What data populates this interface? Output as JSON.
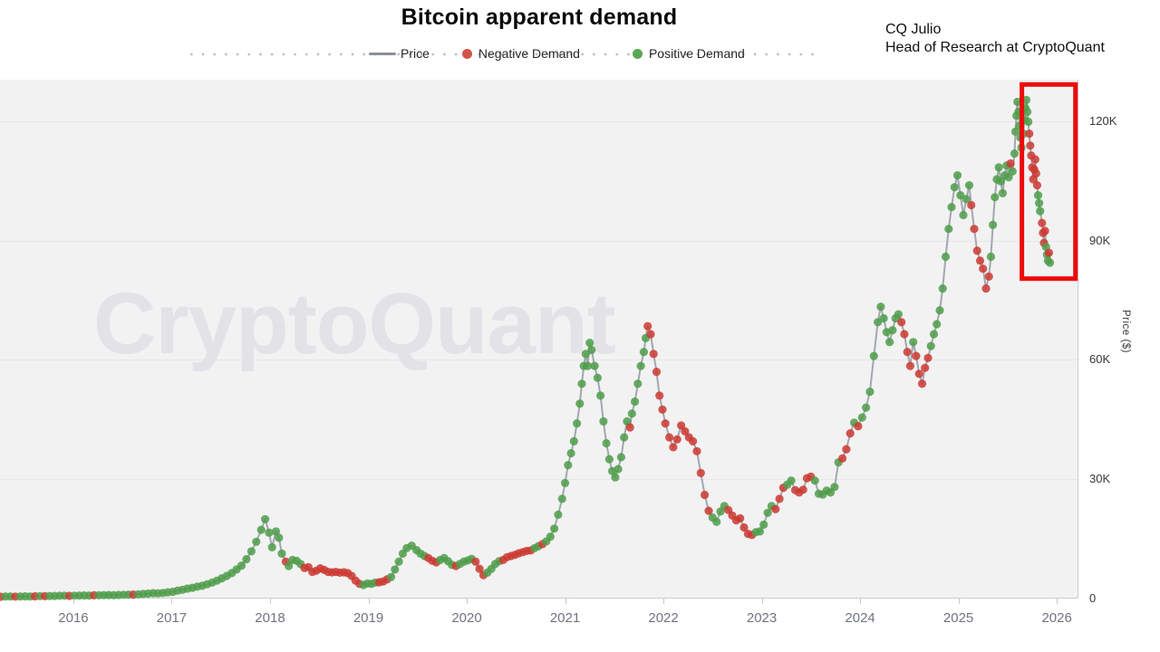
{
  "header": {
    "title": "Bitcoin apparent demand",
    "attribution_name": "CQ Julio",
    "attribution_role": "Head of Research at CryptoQuant"
  },
  "legend": {
    "price": "Price",
    "negative": "Negative Demand",
    "positive": "Positive Demand"
  },
  "watermark": {
    "text": "CryptoQuant"
  },
  "chart_data": {
    "type": "scatter",
    "title": "Bitcoin apparent demand",
    "xlabel": "",
    "ylabel": "Price ($)",
    "x_range": [
      2015.254,
      2026.22
    ],
    "y_range": [
      0,
      130.6
    ],
    "grid": "horizontal",
    "legend_position": "top-center",
    "price_unit": "thousand USD",
    "y_ticks": [
      {
        "label": "0",
        "value": 0
      },
      {
        "label": "30K",
        "value": 30
      },
      {
        "label": "60K",
        "value": 60
      },
      {
        "label": "90K",
        "value": 90
      },
      {
        "label": "120K",
        "value": 120
      }
    ],
    "x_ticks": [
      2016,
      2017,
      2018,
      2019,
      2020,
      2021,
      2022,
      2023,
      2024,
      2025,
      2026
    ],
    "colors": {
      "price_line": "#999fa7",
      "positive": "#4f9e4a",
      "negative": "#cd3a31",
      "highlight": "#ec0b0c"
    },
    "highlight_box": {
      "t_start": 2025.645,
      "t_end": 2026.19,
      "price_low": 80.5,
      "price_high": 129.4
    },
    "series_points_format": [
      "decimal_year",
      "price_thousand_usd",
      "demand_sign_1pos_-1neg"
    ],
    "series_points": [
      [
        2015.26,
        0.35,
        -1
      ],
      [
        2015.31,
        0.4,
        1
      ],
      [
        2015.36,
        0.42,
        1
      ],
      [
        2015.41,
        0.38,
        -1
      ],
      [
        2015.46,
        0.42,
        1
      ],
      [
        2015.51,
        0.45,
        1
      ],
      [
        2015.56,
        0.42,
        1
      ],
      [
        2015.61,
        0.45,
        -1
      ],
      [
        2015.66,
        0.5,
        1
      ],
      [
        2015.71,
        0.48,
        -1
      ],
      [
        2015.76,
        0.52,
        1
      ],
      [
        2015.81,
        0.55,
        1
      ],
      [
        2015.86,
        0.6,
        1
      ],
      [
        2015.91,
        0.62,
        1
      ],
      [
        2015.96,
        0.58,
        -1
      ],
      [
        2016.01,
        0.62,
        1
      ],
      [
        2016.06,
        0.65,
        1
      ],
      [
        2016.11,
        0.68,
        1
      ],
      [
        2016.16,
        0.65,
        1
      ],
      [
        2016.21,
        0.7,
        -1
      ],
      [
        2016.26,
        0.72,
        1
      ],
      [
        2016.31,
        0.75,
        1
      ],
      [
        2016.36,
        0.78,
        1
      ],
      [
        2016.41,
        0.75,
        1
      ],
      [
        2016.46,
        0.8,
        1
      ],
      [
        2016.51,
        0.85,
        1
      ],
      [
        2016.56,
        0.9,
        1
      ],
      [
        2016.61,
        0.88,
        -1
      ],
      [
        2016.66,
        0.95,
        1
      ],
      [
        2016.71,
        1.05,
        1
      ],
      [
        2016.76,
        1.15,
        1
      ],
      [
        2016.81,
        1.25,
        1
      ],
      [
        2016.86,
        1.2,
        1
      ],
      [
        2016.91,
        1.3,
        1
      ],
      [
        2016.96,
        1.45,
        1
      ],
      [
        2017.01,
        1.6,
        1
      ],
      [
        2017.06,
        1.9,
        1
      ],
      [
        2017.11,
        2.1,
        1
      ],
      [
        2017.16,
        2.4,
        1
      ],
      [
        2017.21,
        2.6,
        1
      ],
      [
        2017.26,
        2.9,
        1
      ],
      [
        2017.31,
        3.1,
        1
      ],
      [
        2017.36,
        3.5,
        1
      ],
      [
        2017.41,
        3.9,
        1
      ],
      [
        2017.46,
        4.4,
        1
      ],
      [
        2017.51,
        5.0,
        1
      ],
      [
        2017.56,
        5.6,
        1
      ],
      [
        2017.61,
        6.3,
        1
      ],
      [
        2017.66,
        7.2,
        1
      ],
      [
        2017.71,
        8.2,
        1
      ],
      [
        2017.76,
        9.8,
        1
      ],
      [
        2017.81,
        11.8,
        1
      ],
      [
        2017.86,
        14.2,
        1
      ],
      [
        2017.91,
        17.2,
        1
      ],
      [
        2017.95,
        19.9,
        1
      ],
      [
        2017.99,
        16.5,
        1
      ],
      [
        2018.02,
        12.8,
        1
      ],
      [
        2018.06,
        16.8,
        1
      ],
      [
        2018.09,
        15.2,
        1
      ],
      [
        2018.12,
        11.2,
        1
      ],
      [
        2018.16,
        9.2,
        -1
      ],
      [
        2018.19,
        8.1,
        1
      ],
      [
        2018.23,
        9.6,
        1
      ],
      [
        2018.27,
        9.4,
        1
      ],
      [
        2018.31,
        8.6,
        1
      ],
      [
        2018.35,
        7.6,
        -1
      ],
      [
        2018.39,
        7.8,
        -1
      ],
      [
        2018.43,
        6.6,
        -1
      ],
      [
        2018.47,
        6.9,
        -1
      ],
      [
        2018.51,
        7.5,
        -1
      ],
      [
        2018.55,
        7.1,
        -1
      ],
      [
        2018.59,
        6.6,
        -1
      ],
      [
        2018.63,
        6.5,
        -1
      ],
      [
        2018.67,
        6.6,
        -1
      ],
      [
        2018.71,
        6.4,
        -1
      ],
      [
        2018.75,
        6.5,
        -1
      ],
      [
        2018.79,
        6.3,
        -1
      ],
      [
        2018.83,
        5.6,
        -1
      ],
      [
        2018.87,
        4.4,
        -1
      ],
      [
        2018.91,
        3.6,
        -1
      ],
      [
        2018.95,
        3.3,
        1
      ],
      [
        2018.99,
        3.7,
        1
      ],
      [
        2019.03,
        3.6,
        1
      ],
      [
        2019.07,
        3.9,
        1
      ],
      [
        2019.11,
        4.0,
        -1
      ],
      [
        2019.15,
        4.2,
        -1
      ],
      [
        2019.19,
        4.7,
        -1
      ],
      [
        2019.23,
        5.3,
        1
      ],
      [
        2019.27,
        7.2,
        1
      ],
      [
        2019.31,
        9.2,
        1
      ],
      [
        2019.35,
        11.2,
        1
      ],
      [
        2019.39,
        12.6,
        1
      ],
      [
        2019.44,
        13.2,
        1
      ],
      [
        2019.49,
        12.1,
        1
      ],
      [
        2019.53,
        11.2,
        1
      ],
      [
        2019.57,
        10.6,
        1
      ],
      [
        2019.61,
        10.1,
        -1
      ],
      [
        2019.65,
        9.4,
        -1
      ],
      [
        2019.69,
        9.0,
        -1
      ],
      [
        2019.73,
        9.6,
        1
      ],
      [
        2019.77,
        10.1,
        1
      ],
      [
        2019.81,
        9.3,
        1
      ],
      [
        2019.85,
        8.4,
        1
      ],
      [
        2019.89,
        8.1,
        -1
      ],
      [
        2019.93,
        8.6,
        1
      ],
      [
        2019.97,
        9.2,
        1
      ],
      [
        2020.01,
        9.5,
        1
      ],
      [
        2020.05,
        9.9,
        1
      ],
      [
        2020.09,
        9.2,
        -1
      ],
      [
        2020.13,
        7.4,
        -1
      ],
      [
        2020.17,
        5.8,
        -1
      ],
      [
        2020.21,
        6.4,
        1
      ],
      [
        2020.25,
        7.4,
        1
      ],
      [
        2020.29,
        8.6,
        1
      ],
      [
        2020.33,
        9.3,
        1
      ],
      [
        2020.37,
        9.6,
        -1
      ],
      [
        2020.41,
        10.3,
        -1
      ],
      [
        2020.45,
        10.6,
        -1
      ],
      [
        2020.49,
        10.9,
        -1
      ],
      [
        2020.53,
        11.3,
        -1
      ],
      [
        2020.57,
        11.6,
        -1
      ],
      [
        2020.61,
        11.9,
        -1
      ],
      [
        2020.65,
        12.0,
        -1
      ],
      [
        2020.69,
        12.6,
        1
      ],
      [
        2020.73,
        13.1,
        1
      ],
      [
        2020.77,
        13.6,
        -1
      ],
      [
        2020.81,
        14.3,
        1
      ],
      [
        2020.85,
        15.5,
        1
      ],
      [
        2020.89,
        17.5,
        1
      ],
      [
        2020.93,
        21.0,
        1
      ],
      [
        2020.97,
        25.0,
        1
      ],
      [
        2021.0,
        29.0,
        1
      ],
      [
        2021.03,
        33.5,
        1
      ],
      [
        2021.06,
        36.5,
        1
      ],
      [
        2021.09,
        39.5,
        1
      ],
      [
        2021.12,
        44.0,
        1
      ],
      [
        2021.15,
        49.0,
        1
      ],
      [
        2021.17,
        54.0,
        1
      ],
      [
        2021.19,
        58.5,
        1
      ],
      [
        2021.21,
        61.5,
        1
      ],
      [
        2021.23,
        58.5,
        1
      ],
      [
        2021.25,
        64.3,
        1
      ],
      [
        2021.27,
        62.5,
        1
      ],
      [
        2021.3,
        58.5,
        1
      ],
      [
        2021.33,
        55.5,
        1
      ],
      [
        2021.36,
        51.0,
        1
      ],
      [
        2021.39,
        44.5,
        1
      ],
      [
        2021.42,
        39.0,
        1
      ],
      [
        2021.45,
        35.0,
        1
      ],
      [
        2021.48,
        32.0,
        1
      ],
      [
        2021.51,
        30.4,
        1
      ],
      [
        2021.54,
        32.5,
        1
      ],
      [
        2021.57,
        35.5,
        1
      ],
      [
        2021.6,
        40.5,
        1
      ],
      [
        2021.63,
        44.5,
        1
      ],
      [
        2021.66,
        43.0,
        -1
      ],
      [
        2021.68,
        46.5,
        1
      ],
      [
        2021.71,
        49.5,
        1
      ],
      [
        2021.74,
        54.0,
        1
      ],
      [
        2021.77,
        58.5,
        1
      ],
      [
        2021.8,
        62.0,
        1
      ],
      [
        2021.82,
        65.5,
        1
      ],
      [
        2021.84,
        68.5,
        -1
      ],
      [
        2021.87,
        66.5,
        -1
      ],
      [
        2021.9,
        61.5,
        -1
      ],
      [
        2021.93,
        57.0,
        -1
      ],
      [
        2021.96,
        51.0,
        -1
      ],
      [
        2021.99,
        47.5,
        -1
      ],
      [
        2022.02,
        44.0,
        -1
      ],
      [
        2022.06,
        40.5,
        -1
      ],
      [
        2022.1,
        38.0,
        -1
      ],
      [
        2022.14,
        40.0,
        -1
      ],
      [
        2022.18,
        43.5,
        -1
      ],
      [
        2022.22,
        42.0,
        -1
      ],
      [
        2022.26,
        40.5,
        -1
      ],
      [
        2022.3,
        39.5,
        -1
      ],
      [
        2022.34,
        37.0,
        -1
      ],
      [
        2022.38,
        31.5,
        -1
      ],
      [
        2022.42,
        26.0,
        -1
      ],
      [
        2022.46,
        22.0,
        -1
      ],
      [
        2022.5,
        20.3,
        1
      ],
      [
        2022.54,
        19.2,
        1
      ],
      [
        2022.58,
        21.8,
        1
      ],
      [
        2022.62,
        23.2,
        1
      ],
      [
        2022.66,
        22.2,
        -1
      ],
      [
        2022.7,
        20.8,
        -1
      ],
      [
        2022.74,
        19.6,
        -1
      ],
      [
        2022.78,
        20.1,
        -1
      ],
      [
        2022.82,
        17.8,
        -1
      ],
      [
        2022.86,
        16.2,
        -1
      ],
      [
        2022.9,
        15.9,
        -1
      ],
      [
        2022.94,
        16.6,
        1
      ],
      [
        2022.98,
        16.8,
        1
      ],
      [
        2023.02,
        18.5,
        1
      ],
      [
        2023.06,
        21.5,
        1
      ],
      [
        2023.1,
        23.2,
        1
      ],
      [
        2023.14,
        22.4,
        -1
      ],
      [
        2023.18,
        25.0,
        -1
      ],
      [
        2023.22,
        27.8,
        -1
      ],
      [
        2023.26,
        28.6,
        1
      ],
      [
        2023.3,
        29.6,
        1
      ],
      [
        2023.34,
        27.2,
        -1
      ],
      [
        2023.38,
        26.6,
        -1
      ],
      [
        2023.42,
        27.3,
        -1
      ],
      [
        2023.46,
        30.2,
        -1
      ],
      [
        2023.5,
        30.6,
        -1
      ],
      [
        2023.54,
        29.6,
        1
      ],
      [
        2023.58,
        26.3,
        1
      ],
      [
        2023.62,
        26.1,
        1
      ],
      [
        2023.66,
        27.1,
        1
      ],
      [
        2023.7,
        26.6,
        1
      ],
      [
        2023.74,
        28.0,
        1
      ],
      [
        2023.78,
        34.2,
        1
      ],
      [
        2023.82,
        35.2,
        -1
      ],
      [
        2023.86,
        37.5,
        -1
      ],
      [
        2023.9,
        41.5,
        -1
      ],
      [
        2023.94,
        44.2,
        1
      ],
      [
        2023.98,
        43.3,
        -1
      ],
      [
        2024.02,
        45.5,
        1
      ],
      [
        2024.06,
        48.0,
        1
      ],
      [
        2024.1,
        52.0,
        1
      ],
      [
        2024.14,
        61.0,
        1
      ],
      [
        2024.18,
        69.5,
        1
      ],
      [
        2024.21,
        73.4,
        1
      ],
      [
        2024.24,
        70.5,
        1
      ],
      [
        2024.27,
        67.0,
        1
      ],
      [
        2024.3,
        64.5,
        1
      ],
      [
        2024.33,
        67.5,
        1
      ],
      [
        2024.36,
        70.5,
        1
      ],
      [
        2024.39,
        71.5,
        1
      ],
      [
        2024.42,
        69.5,
        -1
      ],
      [
        2024.45,
        66.5,
        -1
      ],
      [
        2024.48,
        62.0,
        -1
      ],
      [
        2024.51,
        58.5,
        -1
      ],
      [
        2024.54,
        64.5,
        1
      ],
      [
        2024.57,
        61.0,
        -1
      ],
      [
        2024.6,
        56.5,
        -1
      ],
      [
        2024.63,
        54.0,
        -1
      ],
      [
        2024.66,
        58.0,
        -1
      ],
      [
        2024.69,
        60.5,
        -1
      ],
      [
        2024.72,
        63.5,
        1
      ],
      [
        2024.75,
        66.5,
        1
      ],
      [
        2024.78,
        69.0,
        1
      ],
      [
        2024.81,
        72.5,
        1
      ],
      [
        2024.84,
        78.0,
        1
      ],
      [
        2024.87,
        86.0,
        1
      ],
      [
        2024.9,
        93.0,
        1
      ],
      [
        2024.93,
        98.5,
        1
      ],
      [
        2024.96,
        103.5,
        1
      ],
      [
        2024.99,
        106.5,
        1
      ],
      [
        2025.02,
        101.5,
        1
      ],
      [
        2025.05,
        96.5,
        1
      ],
      [
        2025.08,
        100.5,
        1
      ],
      [
        2025.11,
        104.0,
        1
      ],
      [
        2025.13,
        99.0,
        -1
      ],
      [
        2025.16,
        93.0,
        -1
      ],
      [
        2025.19,
        87.5,
        -1
      ],
      [
        2025.22,
        85.0,
        -1
      ],
      [
        2025.25,
        83.0,
        -1
      ],
      [
        2025.28,
        78.0,
        -1
      ],
      [
        2025.31,
        81.0,
        -1
      ],
      [
        2025.33,
        86.0,
        1
      ],
      [
        2025.35,
        94.0,
        1
      ],
      [
        2025.37,
        101.0,
        1
      ],
      [
        2025.39,
        105.5,
        1
      ],
      [
        2025.41,
        108.5,
        1
      ],
      [
        2025.43,
        105.0,
        1
      ],
      [
        2025.45,
        102.0,
        1
      ],
      [
        2025.47,
        106.5,
        1
      ],
      [
        2025.49,
        109.0,
        1
      ],
      [
        2025.51,
        106.0,
        1
      ],
      [
        2025.53,
        109.5,
        -1
      ],
      [
        2025.55,
        107.5,
        1
      ],
      [
        2025.57,
        112.0,
        1
      ],
      [
        2025.58,
        117.5,
        1
      ],
      [
        2025.59,
        121.5,
        1
      ],
      [
        2025.6,
        125.0,
        1
      ],
      [
        2025.61,
        122.5,
        1
      ],
      [
        2025.62,
        119.0,
        1
      ],
      [
        2025.63,
        116.0,
        1
      ],
      [
        2025.64,
        113.5,
        1
      ],
      [
        2025.66,
        117.0,
        1
      ],
      [
        2025.67,
        120.5,
        1
      ],
      [
        2025.68,
        123.5,
        1
      ],
      [
        2025.69,
        125.5,
        1
      ],
      [
        2025.7,
        122.5,
        1
      ],
      [
        2025.71,
        120.0,
        1
      ],
      [
        2025.72,
        117.0,
        -1
      ],
      [
        2025.73,
        114.0,
        -1
      ],
      [
        2025.74,
        111.5,
        -1
      ],
      [
        2025.75,
        108.5,
        -1
      ],
      [
        2025.76,
        105.5,
        -1
      ],
      [
        2025.77,
        108.0,
        -1
      ],
      [
        2025.78,
        110.5,
        -1
      ],
      [
        2025.79,
        107.0,
        -1
      ],
      [
        2025.8,
        104.0,
        -1
      ],
      [
        2025.81,
        101.5,
        1
      ],
      [
        2025.82,
        99.5,
        1
      ],
      [
        2025.83,
        97.5,
        1
      ],
      [
        2025.85,
        94.5,
        -1
      ],
      [
        2025.86,
        92.0,
        -1
      ],
      [
        2025.87,
        89.5,
        -1
      ],
      [
        2025.88,
        92.5,
        -1
      ],
      [
        2025.89,
        88.5,
        1
      ],
      [
        2025.9,
        86.5,
        1
      ],
      [
        2025.91,
        85.0,
        1
      ],
      [
        2025.92,
        87.0,
        -1
      ],
      [
        2025.93,
        84.5,
        1
      ]
    ]
  }
}
